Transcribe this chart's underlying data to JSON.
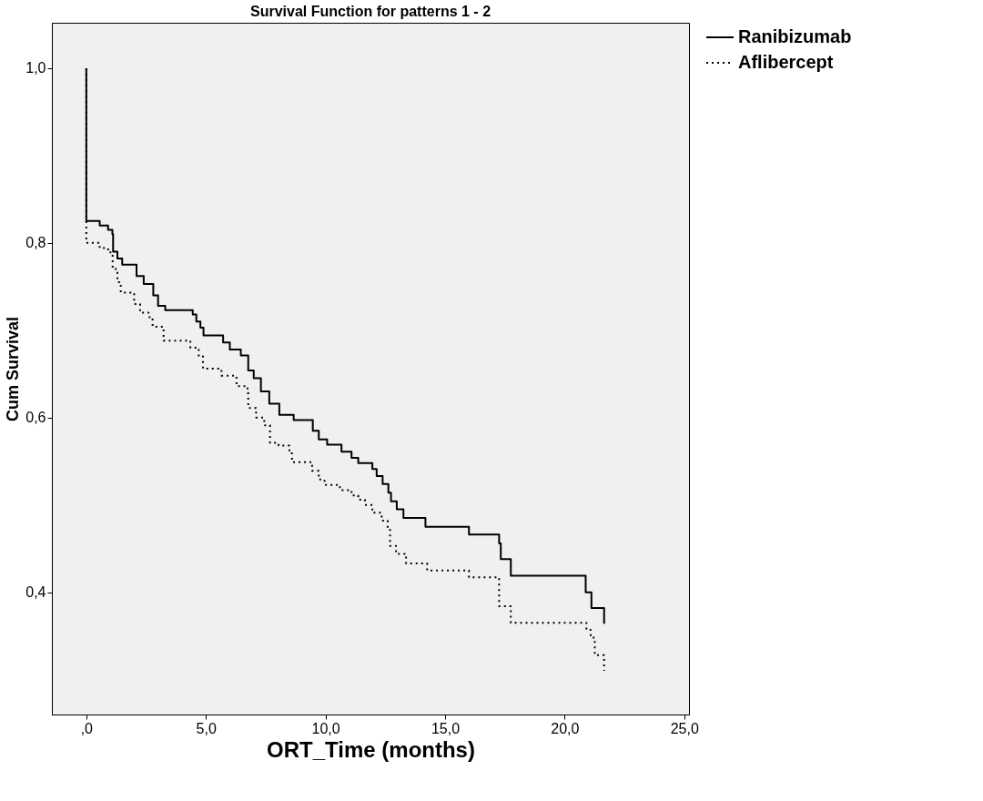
{
  "chart_data": {
    "type": "step",
    "title": "Survival Function for patterns 1 - 2",
    "xlabel": "ORT_Time (months)",
    "ylabel": "Cum Survival",
    "xlim": [
      -1.44,
      25.2
    ],
    "ylim": [
      0.26,
      1.052
    ],
    "xticks": [
      {
        "value": 0,
        "label": ",0"
      },
      {
        "value": 5,
        "label": "5,0"
      },
      {
        "value": 10,
        "label": "10,0"
      },
      {
        "value": 15,
        "label": "15,0"
      },
      {
        "value": 20,
        "label": "20,0"
      },
      {
        "value": 25,
        "label": "25,0"
      }
    ],
    "yticks": [
      {
        "value": 0.4,
        "label": "0,4"
      },
      {
        "value": 0.6,
        "label": "0,6"
      },
      {
        "value": 0.8,
        "label": "0,8"
      },
      {
        "value": 1.0,
        "label": "1,0"
      }
    ],
    "grid": false,
    "legend": "top right",
    "marker": "none",
    "series": [
      {
        "name": "Ranibizumab",
        "color": "#000000",
        "line_style": "solid",
        "x": [
          0,
          0,
          0.56,
          0.91,
          1.09,
          1.12,
          1.3,
          1.5,
          2.1,
          2.4,
          2.8,
          3.0,
          3.3,
          4.45,
          4.6,
          4.77,
          4.9,
          5.72,
          6.0,
          6.46,
          6.77,
          7.0,
          7.3,
          7.65,
          8.07,
          8.67,
          9.47,
          9.72,
          10.07,
          10.67,
          11.09,
          11.37,
          11.96,
          12.14,
          12.39,
          12.63,
          12.74,
          12.98,
          13.26,
          14.18,
          16.0,
          17.26,
          17.33,
          17.75,
          20.88,
          21.12,
          21.65,
          21.65
        ],
        "values": [
          1.0,
          0.825,
          0.82,
          0.815,
          0.81,
          0.79,
          0.782,
          0.775,
          0.762,
          0.753,
          0.74,
          0.728,
          0.723,
          0.718,
          0.71,
          0.703,
          0.694,
          0.686,
          0.678,
          0.671,
          0.654,
          0.645,
          0.63,
          0.616,
          0.603,
          0.597,
          0.585,
          0.575,
          0.569,
          0.561,
          0.554,
          0.548,
          0.541,
          0.533,
          0.524,
          0.514,
          0.504,
          0.495,
          0.485,
          0.475,
          0.466,
          0.456,
          0.438,
          0.419,
          0.4,
          0.382,
          0.382,
          0.364
        ]
      },
      {
        "name": "Aflibercept",
        "color": "#000000",
        "line_style": "dotted",
        "x": [
          0,
          0,
          0.56,
          0.91,
          1.1,
          1.3,
          1.44,
          2.0,
          2.25,
          2.6,
          2.77,
          3.23,
          4.35,
          4.7,
          4.88,
          5.65,
          6.28,
          6.74,
          6.77,
          7.1,
          7.44,
          7.68,
          8.04,
          8.49,
          8.6,
          9.44,
          9.72,
          9.96,
          10.6,
          11.09,
          11.37,
          11.65,
          11.96,
          12.35,
          12.6,
          12.7,
          12.95,
          13.37,
          14.25,
          16.0,
          17.26,
          17.75,
          20.91,
          21.09,
          21.26,
          21.65,
          21.65
        ],
        "values": [
          1.0,
          0.8,
          0.794,
          0.789,
          0.77,
          0.755,
          0.743,
          0.73,
          0.72,
          0.715,
          0.704,
          0.688,
          0.68,
          0.67,
          0.656,
          0.648,
          0.636,
          0.628,
          0.611,
          0.6,
          0.591,
          0.571,
          0.568,
          0.559,
          0.549,
          0.539,
          0.529,
          0.523,
          0.517,
          0.511,
          0.506,
          0.5,
          0.491,
          0.482,
          0.473,
          0.453,
          0.444,
          0.433,
          0.425,
          0.417,
          0.384,
          0.365,
          0.357,
          0.348,
          0.328,
          0.325,
          0.31
        ]
      }
    ]
  }
}
